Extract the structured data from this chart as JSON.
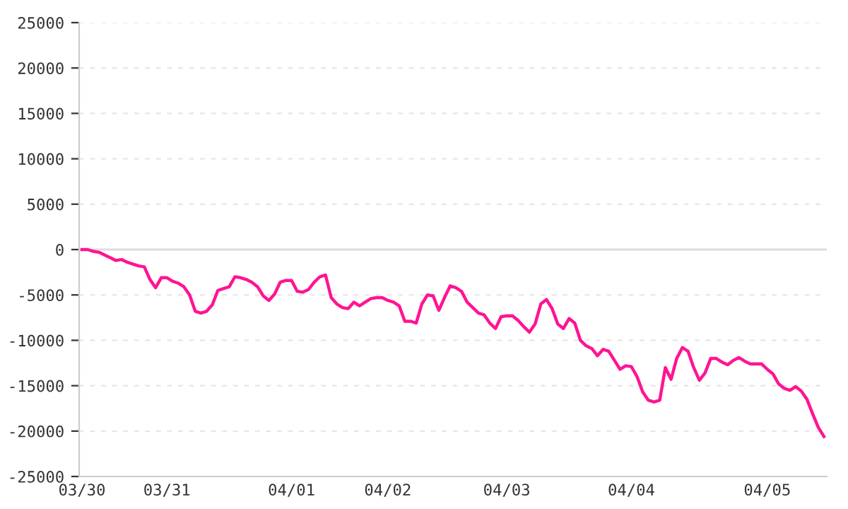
{
  "chart_data": {
    "type": "line",
    "categories": [
      "03/30",
      null,
      null,
      null,
      null,
      null,
      null,
      null,
      null,
      null,
      null,
      null,
      null,
      null,
      null,
      "03/31",
      null,
      null,
      null,
      null,
      null,
      null,
      null,
      null,
      null,
      null,
      null,
      null,
      null,
      null,
      null,
      null,
      null,
      null,
      null,
      null,
      null,
      "04/01",
      null,
      null,
      null,
      null,
      null,
      null,
      null,
      null,
      null,
      null,
      null,
      null,
      null,
      null,
      null,
      null,
      "04/02",
      null,
      null,
      null,
      null,
      null,
      null,
      null,
      null,
      null,
      null,
      null,
      null,
      null,
      null,
      null,
      null,
      null,
      null,
      null,
      null,
      "04/03",
      null,
      null,
      null,
      null,
      null,
      null,
      null,
      null,
      null,
      null,
      null,
      null,
      null,
      null,
      null,
      null,
      null,
      null,
      null,
      null,
      null,
      "04/04",
      null,
      null,
      null,
      null,
      null,
      null,
      null,
      null,
      null,
      null,
      null,
      null,
      null,
      null,
      null,
      null,
      null,
      null,
      null,
      null,
      null,
      null,
      null,
      "04/05",
      null,
      null,
      null,
      null,
      null,
      null,
      null,
      null,
      null,
      null
    ],
    "series": [
      {
        "color": "#ff1493",
        "values": [
          0,
          0,
          -200,
          -300,
          -600,
          -900,
          -1200,
          -1100,
          -1400,
          -1600,
          -1800,
          -1900,
          -3300,
          -4200,
          -3100,
          -3100,
          -3500,
          -3700,
          -4100,
          -5000,
          -6800,
          -7000,
          -6800,
          -6100,
          -4500,
          -4300,
          -4100,
          -3000,
          -3100,
          -3300,
          -3600,
          -4100,
          -5100,
          -5600,
          -4900,
          -3600,
          -3400,
          -3400,
          -4600,
          -4700,
          -4400,
          -3600,
          -3000,
          -2800,
          -5300,
          -6000,
          -6400,
          -6500,
          -5800,
          -6200,
          -5800,
          -5400,
          -5300,
          -5300,
          -5600,
          -5800,
          -6200,
          -7900,
          -7900,
          -8100,
          -6000,
          -5000,
          -5100,
          -6700,
          -5300,
          -4000,
          -4200,
          -4600,
          -5800,
          -6400,
          -7000,
          -7200,
          -8100,
          -8700,
          -7400,
          -7300,
          -7300,
          -7800,
          -8500,
          -9100,
          -8200,
          -6000,
          -5500,
          -6500,
          -8200,
          -8700,
          -7600,
          -8100,
          -10000,
          -10600,
          -10900,
          -11700,
          -11000,
          -11200,
          -12200,
          -13200,
          -12800,
          -12900,
          -14000,
          -15700,
          -16600,
          -16800,
          -16600,
          -13000,
          -14300,
          -12000,
          -10800,
          -11200,
          -13000,
          -14400,
          -13600,
          -12000,
          -12000,
          -12400,
          -12700,
          -12200,
          -11900,
          -12300,
          -12600,
          -12600,
          -12600,
          -13200,
          -13700,
          -14800,
          -15300,
          -15500,
          -15100,
          -15600,
          -16500,
          -18100,
          -19600,
          -20600
        ]
      }
    ],
    "ylim": [
      -25000,
      25000
    ],
    "yticks": [
      -25000,
      -20000,
      -15000,
      -10000,
      -5000,
      0,
      5000,
      10000,
      15000,
      20000,
      25000
    ],
    "grid": "y",
    "ref_lines": [
      {
        "axis": "y",
        "value": 0,
        "color": "#dddddd"
      }
    ],
    "marker": "none",
    "line_style": "solid"
  }
}
